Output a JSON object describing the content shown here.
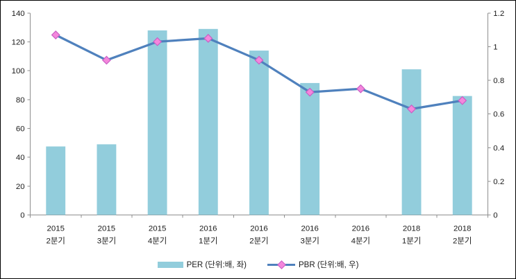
{
  "chart_data": {
    "type": "bar",
    "subtype": "combo-bar-line",
    "categories": [
      "2015 2분기",
      "2015 3분기",
      "2015 4분기",
      "2016 1분기",
      "2016 2분기",
      "2016 3분기",
      "2016 4분기",
      "2018 1분기",
      "2018 2분기"
    ],
    "series": [
      {
        "name": "PER (단위:배, 좌)",
        "type": "bar",
        "axis": "left",
        "color": "#92CDDC",
        "values": [
          47.5,
          49,
          128,
          129,
          114,
          91.5,
          null,
          101,
          82.5
        ]
      },
      {
        "name": "PBR (단위:배, 우)",
        "type": "line",
        "axis": "right",
        "color": "#4F81BD",
        "marker": "diamond",
        "marker_fill": "#F487DC",
        "marker_stroke": "#C95FC5",
        "values": [
          1.07,
          0.92,
          1.03,
          1.05,
          0.92,
          0.73,
          0.75,
          0.63,
          0.68
        ]
      }
    ],
    "left_axis": {
      "min": 0,
      "max": 140,
      "step": 20,
      "tick_labels": [
        "0",
        "20",
        "40",
        "60",
        "80",
        "100",
        "120",
        "140"
      ]
    },
    "right_axis": {
      "min": 0,
      "max": 1.2,
      "step": 0.2,
      "tick_labels": [
        "0",
        "0.2",
        "0.4",
        "0.6",
        "0.8",
        "1",
        "1.2"
      ]
    },
    "grid": false,
    "legend_position": "bottom"
  },
  "colors": {
    "bar": "#92CDDC",
    "line": "#4F81BD",
    "marker_fill": "#F487DC",
    "marker_stroke": "#C95FC5",
    "axis": "#8E8E8E",
    "text": "#1A1A1A",
    "border": "#000000",
    "background": "#FFFFFF"
  }
}
